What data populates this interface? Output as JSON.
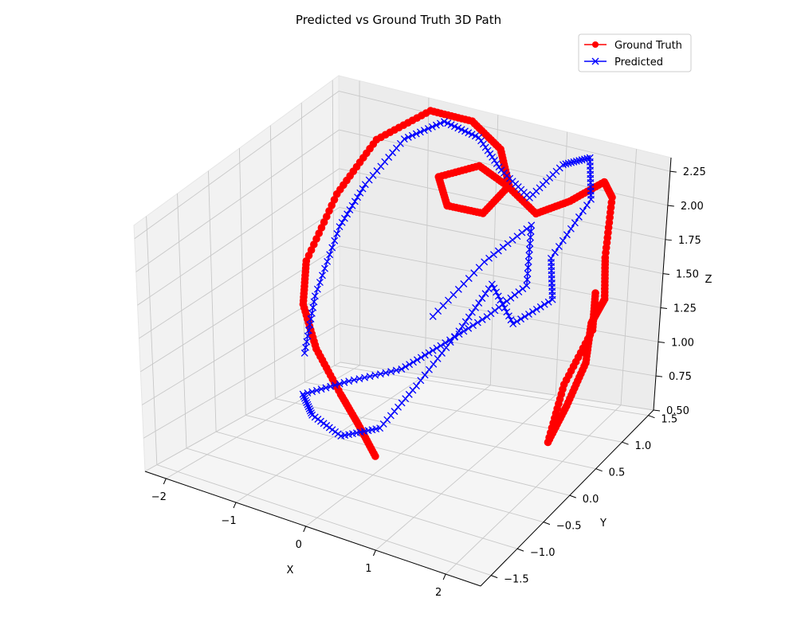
{
  "chart_data": {
    "type": "line",
    "projection": "3d",
    "title": "Predicted vs Ground Truth 3D Path",
    "xlabel": "X",
    "ylabel": "Y",
    "zlabel": "Z",
    "xlim": [
      -2.3,
      2.5
    ],
    "ylim": [
      -1.7,
      1.6
    ],
    "zlim": [
      0.5,
      2.35
    ],
    "x_ticks": [
      "−2",
      "−1",
      "0",
      "1",
      "2"
    ],
    "x_tick_values": [
      -2,
      -1,
      0,
      1,
      2
    ],
    "y_ticks": [
      "−1.5",
      "−1.0",
      "−0.5",
      "0.0",
      "0.5",
      "1.0",
      "1.5"
    ],
    "y_tick_values": [
      -1.5,
      -1.0,
      -0.5,
      0.0,
      0.5,
      1.0,
      1.5
    ],
    "z_ticks": [
      "0.50",
      "0.75",
      "1.00",
      "1.25",
      "1.50",
      "1.75",
      "2.00",
      "2.25"
    ],
    "z_tick_values": [
      0.5,
      0.75,
      1.0,
      1.25,
      1.5,
      1.75,
      2.0,
      2.25
    ],
    "grid": true,
    "legend_position": "top-right",
    "series": [
      {
        "name": "Ground Truth",
        "color": "#ff0000",
        "marker": "circle",
        "points": [
          [
            0.6,
            -1.2,
            0.95
          ],
          [
            0.2,
            -1.0,
            1.05
          ],
          [
            -0.3,
            -0.7,
            1.1
          ],
          [
            -0.9,
            -0.4,
            1.25
          ],
          [
            -1.6,
            0.2,
            1.3
          ],
          [
            -1.9,
            0.6,
            1.45
          ],
          [
            -1.8,
            1.0,
            1.8
          ],
          [
            -1.4,
            1.2,
            2.15
          ],
          [
            -0.8,
            1.4,
            2.35
          ],
          [
            -0.2,
            1.4,
            2.35
          ],
          [
            0.3,
            1.3,
            2.25
          ],
          [
            0.6,
            1.1,
            2.1
          ],
          [
            0.4,
            0.9,
            1.95
          ],
          [
            -0.2,
            1.0,
            1.9
          ],
          [
            -0.5,
            1.2,
            2.0
          ],
          [
            0.0,
            1.3,
            2.1
          ],
          [
            0.5,
            1.2,
            2.05
          ],
          [
            1.0,
            1.1,
            1.95
          ],
          [
            1.4,
            1.2,
            2.05
          ],
          [
            1.8,
            1.3,
            2.2
          ],
          [
            2.0,
            1.2,
            2.15
          ],
          [
            2.1,
            1.0,
            1.8
          ],
          [
            2.2,
            0.9,
            1.55
          ],
          [
            2.1,
            0.8,
            1.4
          ],
          [
            2.2,
            0.6,
            1.2
          ],
          [
            2.1,
            0.4,
            0.95
          ],
          [
            2.0,
            0.2,
            0.75
          ],
          [
            2.05,
            0.4,
            1.1
          ],
          [
            2.2,
            0.7,
            1.4
          ],
          [
            2.1,
            0.85,
            1.6
          ]
        ]
      },
      {
        "name": "Predicted",
        "color": "#0000ff",
        "marker": "x",
        "points": [
          [
            -1.5,
            0.1,
            1.0
          ],
          [
            -1.6,
            0.4,
            1.3
          ],
          [
            -1.5,
            0.7,
            1.7
          ],
          [
            -1.3,
            0.9,
            1.95
          ],
          [
            -1.0,
            1.2,
            2.2
          ],
          [
            -0.6,
            1.4,
            2.3
          ],
          [
            -0.1,
            1.4,
            2.25
          ],
          [
            0.4,
            1.2,
            2.15
          ],
          [
            0.9,
            1.1,
            2.05
          ],
          [
            1.2,
            1.3,
            2.25
          ],
          [
            1.5,
            1.4,
            2.3
          ],
          [
            1.7,
            1.2,
            2.1
          ],
          [
            1.4,
            0.9,
            1.75
          ],
          [
            1.6,
            0.7,
            1.55
          ],
          [
            1.2,
            0.5,
            1.4
          ],
          [
            0.8,
            0.6,
            1.6
          ],
          [
            0.5,
            0.4,
            1.3
          ],
          [
            0.3,
            -0.1,
            1.05
          ],
          [
            0.1,
            -0.5,
            0.85
          ],
          [
            -0.3,
            -0.7,
            0.8
          ],
          [
            -0.8,
            -0.6,
            0.85
          ],
          [
            -1.1,
            -0.4,
            0.9
          ],
          [
            -0.6,
            -0.2,
            1.0
          ],
          [
            0.0,
            0.0,
            1.1
          ],
          [
            0.4,
            0.2,
            1.25
          ],
          [
            0.9,
            0.4,
            1.45
          ],
          [
            1.3,
            0.6,
            1.65
          ],
          [
            1.1,
            0.9,
            1.95
          ],
          [
            0.6,
            0.7,
            1.7
          ],
          [
            0.2,
            0.3,
            1.4
          ]
        ]
      }
    ]
  }
}
